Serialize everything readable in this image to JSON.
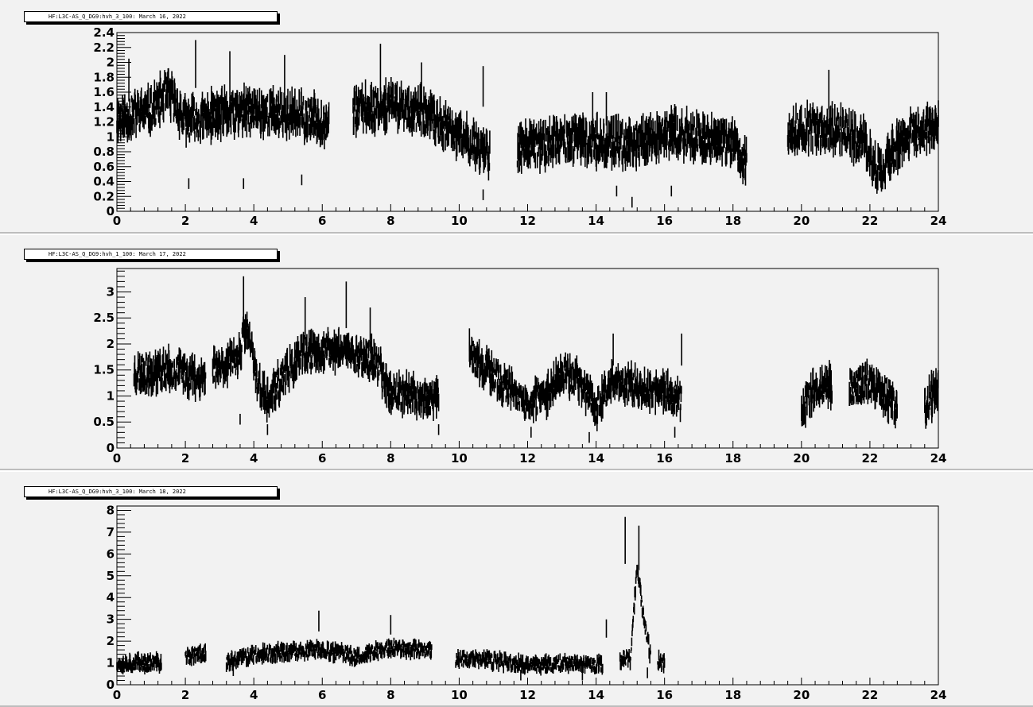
{
  "chart_data": [
    {
      "type": "line",
      "title": "HF:L3C-AS_Q_DG9:hvh_3_100: March 16, 2022",
      "xlim": [
        0,
        24
      ],
      "ylim": [
        0,
        2.4
      ],
      "x_ticks": [
        "0",
        "2",
        "4",
        "6",
        "8",
        "10",
        "12",
        "14",
        "16",
        "18",
        "20",
        "22",
        "24"
      ],
      "y_ticks": [
        "0",
        "0.2",
        "0.4",
        "0.6",
        "0.8",
        "1",
        "1.2",
        "1.4",
        "1.6",
        "1.8",
        "2",
        "2.2",
        "2.4"
      ],
      "y_tick_values": [
        0,
        0.2,
        0.4,
        0.6,
        0.8,
        1.0,
        1.2,
        1.4,
        1.6,
        1.8,
        2.0,
        2.2,
        2.4
      ],
      "noise": 0.28,
      "seed": 11,
      "segments": [
        {
          "x0": 0.0,
          "x1": 6.2,
          "trend": [
            [
              0,
              1.25
            ],
            [
              1,
              1.35
            ],
            [
              1.5,
              1.6
            ],
            [
              2,
              1.2
            ],
            [
              3,
              1.3
            ],
            [
              4,
              1.35
            ],
            [
              5,
              1.3
            ],
            [
              6.2,
              1.2
            ]
          ]
        },
        {
          "x0": 6.9,
          "x1": 10.9,
          "trend": [
            [
              6.9,
              1.35
            ],
            [
              8,
              1.45
            ],
            [
              9,
              1.3
            ],
            [
              10,
              1.0
            ],
            [
              10.9,
              0.8
            ]
          ]
        },
        {
          "x0": 11.7,
          "x1": 18.4,
          "trend": [
            [
              11.7,
              0.85
            ],
            [
              13,
              0.95
            ],
            [
              14,
              0.95
            ],
            [
              15,
              0.9
            ],
            [
              16,
              1.05
            ],
            [
              17,
              1.0
            ],
            [
              18,
              0.9
            ],
            [
              18.4,
              0.65
            ]
          ]
        },
        {
          "x0": 19.6,
          "x1": 24.0,
          "trend": [
            [
              19.6,
              1.1
            ],
            [
              21,
              1.1
            ],
            [
              21.8,
              0.95
            ],
            [
              22.2,
              0.55
            ],
            [
              22.6,
              0.75
            ],
            [
              23.2,
              1.05
            ],
            [
              24,
              1.1
            ]
          ]
        }
      ],
      "spikes": [
        [
          0.35,
          2.05
        ],
        [
          2.3,
          2.3
        ],
        [
          3.3,
          2.15
        ],
        [
          4.9,
          2.1
        ],
        [
          7.7,
          2.25
        ],
        [
          8.9,
          2.0
        ],
        [
          10.7,
          1.95
        ],
        [
          13.9,
          1.6
        ],
        [
          14.3,
          1.6
        ],
        [
          20.8,
          1.9
        ]
      ],
      "dips": [
        [
          2.1,
          0.3
        ],
        [
          3.7,
          0.3
        ],
        [
          5.4,
          0.35
        ],
        [
          10.7,
          0.15
        ],
        [
          14.6,
          0.2
        ],
        [
          15.05,
          0.05
        ],
        [
          16.2,
          0.2
        ],
        [
          22.2,
          0.35
        ]
      ]
    },
    {
      "type": "line",
      "title": "HF:L3C-AS_Q_DG9:hvh_1_100: March 17, 2022",
      "xlim": [
        0,
        24
      ],
      "ylim": [
        0,
        3.45
      ],
      "x_ticks": [
        "0",
        "2",
        "4",
        "6",
        "8",
        "10",
        "12",
        "14",
        "16",
        "18",
        "20",
        "22",
        "24"
      ],
      "y_ticks": [
        "0",
        "0.5",
        "1",
        "1.5",
        "2",
        "2.5",
        "3"
      ],
      "y_tick_values": [
        0,
        0.5,
        1.0,
        1.5,
        2.0,
        2.5,
        3.0
      ],
      "noise": 0.35,
      "seed": 23,
      "segments": [
        {
          "x0": 0.5,
          "x1": 2.6,
          "trend": [
            [
              0.5,
              1.45
            ],
            [
              1.5,
              1.5
            ],
            [
              2.6,
              1.35
            ]
          ]
        },
        {
          "x0": 2.8,
          "x1": 9.4,
          "trend": [
            [
              2.8,
              1.55
            ],
            [
              3.5,
              1.7
            ],
            [
              3.8,
              2.3
            ],
            [
              4.1,
              1.3
            ],
            [
              4.4,
              0.9
            ],
            [
              5,
              1.5
            ],
            [
              5.5,
              1.8
            ],
            [
              6.5,
              1.9
            ],
            [
              7.5,
              1.7
            ],
            [
              8,
              1.1
            ],
            [
              9,
              0.95
            ],
            [
              9.4,
              0.9
            ]
          ]
        },
        {
          "x0": 10.3,
          "x1": 16.5,
          "trend": [
            [
              10.3,
              1.8
            ],
            [
              11,
              1.4
            ],
            [
              12,
              0.8
            ],
            [
              12.5,
              1.0
            ],
            [
              13,
              1.5
            ],
            [
              13.5,
              1.3
            ],
            [
              14,
              0.8
            ],
            [
              14.5,
              1.3
            ],
            [
              15,
              1.2
            ],
            [
              16,
              1.1
            ],
            [
              16.5,
              0.9
            ]
          ]
        },
        {
          "x0": 20.0,
          "x1": 20.9,
          "trend": [
            [
              20.0,
              0.75
            ],
            [
              20.4,
              1.15
            ],
            [
              20.9,
              1.2
            ]
          ]
        },
        {
          "x0": 21.4,
          "x1": 22.8,
          "trend": [
            [
              21.4,
              1.15
            ],
            [
              22,
              1.3
            ],
            [
              22.5,
              1.0
            ],
            [
              22.8,
              0.75
            ]
          ]
        },
        {
          "x0": 23.6,
          "x1": 24.0,
          "trend": [
            [
              23.6,
              0.8
            ],
            [
              24.0,
              1.15
            ]
          ]
        }
      ],
      "spikes": [
        [
          3.7,
          3.3
        ],
        [
          6.7,
          3.2
        ],
        [
          5.5,
          2.9
        ],
        [
          7.4,
          2.7
        ],
        [
          10.3,
          2.3
        ],
        [
          14.5,
          2.2
        ],
        [
          16.5,
          2.2
        ],
        [
          20.6,
          1.6
        ],
        [
          23.8,
          1.5
        ]
      ],
      "dips": [
        [
          3.6,
          0.45
        ],
        [
          4.4,
          0.25
        ],
        [
          12.1,
          0.2
        ],
        [
          13.8,
          0.1
        ],
        [
          16.3,
          0.2
        ],
        [
          9.4,
          0.25
        ]
      ]
    },
    {
      "type": "line",
      "title": "HF:L3C-AS_Q_DG9:hvh_3_100: March 18, 2022",
      "xlim": [
        0,
        24
      ],
      "ylim": [
        0,
        8.2
      ],
      "x_ticks": [
        "0",
        "2",
        "4",
        "6",
        "8",
        "10",
        "12",
        "14",
        "16",
        "18",
        "20",
        "22",
        "24"
      ],
      "y_ticks": [
        "0",
        "1",
        "2",
        "3",
        "4",
        "5",
        "6",
        "7",
        "8"
      ],
      "y_tick_values": [
        0,
        1,
        2,
        3,
        4,
        5,
        6,
        7,
        8
      ],
      "noise": 0.38,
      "seed": 37,
      "segments": [
        {
          "x0": 0.0,
          "x1": 1.3,
          "trend": [
            [
              0,
              1.0
            ],
            [
              1.3,
              1.0
            ]
          ]
        },
        {
          "x0": 2.0,
          "x1": 2.6,
          "trend": [
            [
              2.0,
              1.25
            ],
            [
              2.6,
              1.5
            ]
          ]
        },
        {
          "x0": 3.2,
          "x1": 9.2,
          "trend": [
            [
              3.2,
              1.0
            ],
            [
              4,
              1.4
            ],
            [
              5,
              1.5
            ],
            [
              6,
              1.6
            ],
            [
              7,
              1.3
            ],
            [
              8,
              1.7
            ],
            [
              9.2,
              1.6
            ]
          ]
        },
        {
          "x0": 9.9,
          "x1": 14.2,
          "trend": [
            [
              9.9,
              1.2
            ],
            [
              11,
              1.1
            ],
            [
              12,
              0.9
            ],
            [
              13,
              1.0
            ],
            [
              14.2,
              0.9
            ]
          ]
        },
        {
          "x0": 14.7,
          "x1": 15.6,
          "trend": [
            [
              14.7,
              1.2
            ],
            [
              15.0,
              1.2
            ],
            [
              15.2,
              5.5
            ],
            [
              15.35,
              3.5
            ],
            [
              15.6,
              1.2
            ]
          ]
        },
        {
          "x0": 15.8,
          "x1": 16.0,
          "trend": [
            [
              15.8,
              1.1
            ],
            [
              16.0,
              1.0
            ]
          ]
        }
      ],
      "spikes": [
        [
          5.9,
          3.4
        ],
        [
          8.0,
          3.2
        ],
        [
          14.3,
          3.0
        ],
        [
          14.85,
          7.7
        ],
        [
          15.25,
          7.3
        ]
      ],
      "dips": [
        [
          3.4,
          0.4
        ],
        [
          11.8,
          0.2
        ],
        [
          13.6,
          0.2
        ],
        [
          15.5,
          0.3
        ]
      ]
    }
  ]
}
